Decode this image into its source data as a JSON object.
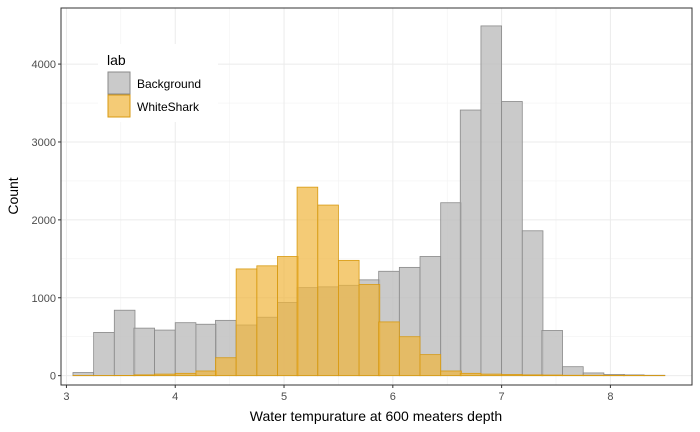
{
  "chart_data": {
    "type": "bar",
    "subtype": "overlaid-histogram",
    "xlabel": "Water tempurature at 600 meaters depth",
    "ylabel": "Count",
    "xlim": [
      2.95,
      8.75
    ],
    "ylim": [
      -120,
      4720
    ],
    "x_ticks": [
      3,
      4,
      5,
      6,
      7,
      8
    ],
    "y_ticks": [
      0,
      1000,
      2000,
      3000,
      4000
    ],
    "grid": true,
    "legend": {
      "title": "lab",
      "position": "top-left inside",
      "entries": [
        "Background",
        "WhiteShark"
      ]
    },
    "bin_width": 0.19,
    "series": [
      {
        "name": "Background",
        "fill": "#bdbdbd",
        "stroke": "#8a8a8a",
        "opacity": 0.8,
        "bins": [
          {
            "x0": 3.06,
            "count": 40
          },
          {
            "x0": 3.25,
            "count": 555
          },
          {
            "x0": 3.44,
            "count": 840
          },
          {
            "x0": 3.62,
            "count": 610
          },
          {
            "x0": 3.81,
            "count": 585
          },
          {
            "x0": 4.0,
            "count": 680
          },
          {
            "x0": 4.19,
            "count": 660
          },
          {
            "x0": 4.37,
            "count": 710
          },
          {
            "x0": 4.56,
            "count": 650
          },
          {
            "x0": 4.75,
            "count": 750
          },
          {
            "x0": 4.94,
            "count": 940
          },
          {
            "x0": 5.12,
            "count": 1130
          },
          {
            "x0": 5.31,
            "count": 1140
          },
          {
            "x0": 5.5,
            "count": 1160
          },
          {
            "x0": 5.69,
            "count": 1230
          },
          {
            "x0": 5.87,
            "count": 1340
          },
          {
            "x0": 6.06,
            "count": 1390
          },
          {
            "x0": 6.25,
            "count": 1530
          },
          {
            "x0": 6.44,
            "count": 2220
          },
          {
            "x0": 6.62,
            "count": 3410
          },
          {
            "x0": 6.81,
            "count": 4490
          },
          {
            "x0": 7.0,
            "count": 3520
          },
          {
            "x0": 7.19,
            "count": 1860
          },
          {
            "x0": 7.37,
            "count": 580
          },
          {
            "x0": 7.56,
            "count": 115
          },
          {
            "x0": 7.75,
            "count": 35
          },
          {
            "x0": 7.94,
            "count": 15
          },
          {
            "x0": 8.12,
            "count": 10
          },
          {
            "x0": 8.31,
            "count": 5
          }
        ]
      },
      {
        "name": "WhiteShark",
        "fill": "#f0b53c",
        "stroke": "#d89a10",
        "opacity": 0.7,
        "bins": [
          {
            "x0": 3.06,
            "count": 2
          },
          {
            "x0": 3.25,
            "count": 2
          },
          {
            "x0": 3.44,
            "count": 3
          },
          {
            "x0": 3.62,
            "count": 10
          },
          {
            "x0": 3.81,
            "count": 20
          },
          {
            "x0": 4.0,
            "count": 30
          },
          {
            "x0": 4.19,
            "count": 60
          },
          {
            "x0": 4.37,
            "count": 230
          },
          {
            "x0": 4.56,
            "count": 1370
          },
          {
            "x0": 4.75,
            "count": 1410
          },
          {
            "x0": 4.94,
            "count": 1530
          },
          {
            "x0": 5.12,
            "count": 2420
          },
          {
            "x0": 5.31,
            "count": 2190
          },
          {
            "x0": 5.5,
            "count": 1480
          },
          {
            "x0": 5.69,
            "count": 1170
          },
          {
            "x0": 5.87,
            "count": 690
          },
          {
            "x0": 6.06,
            "count": 500
          },
          {
            "x0": 6.25,
            "count": 270
          },
          {
            "x0": 6.44,
            "count": 60
          },
          {
            "x0": 6.62,
            "count": 30
          },
          {
            "x0": 6.81,
            "count": 20
          },
          {
            "x0": 7.0,
            "count": 15
          },
          {
            "x0": 7.19,
            "count": 10
          },
          {
            "x0": 7.37,
            "count": 8
          },
          {
            "x0": 7.56,
            "count": 5
          },
          {
            "x0": 7.75,
            "count": 5
          },
          {
            "x0": 7.94,
            "count": 4
          },
          {
            "x0": 8.12,
            "count": 3
          },
          {
            "x0": 8.31,
            "count": 2
          }
        ]
      }
    ]
  }
}
